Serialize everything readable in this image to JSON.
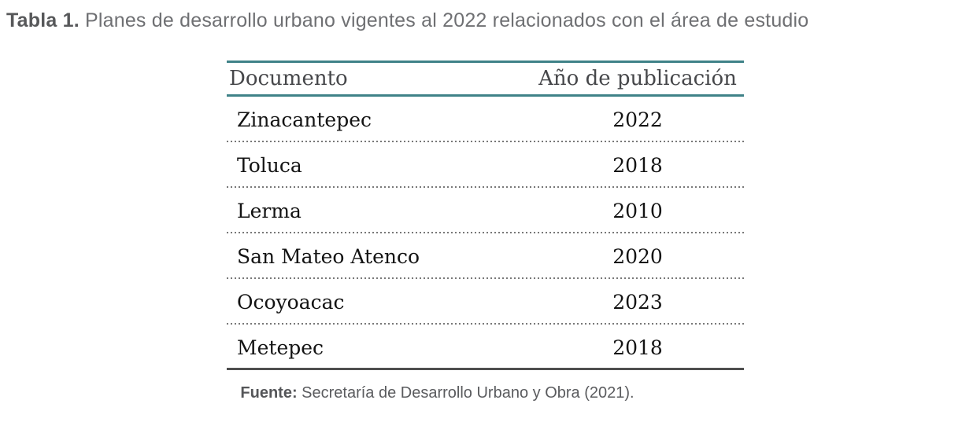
{
  "title": {
    "label": "Tabla 1.",
    "text": " Planes de desarrollo urbano vigentes al 2022 relacionados con el área de estudio"
  },
  "table": {
    "accent_color": "#3f8288",
    "headers": {
      "documento": "Documento",
      "anio": "Año de publicación"
    },
    "rows": [
      {
        "documento": "Zinacantepec",
        "anio": "2022"
      },
      {
        "documento": "Toluca",
        "anio": "2018"
      },
      {
        "documento": "Lerma",
        "anio": "2010"
      },
      {
        "documento": "San Mateo Atenco",
        "anio": "2020"
      },
      {
        "documento": "Ocoyoacac",
        "anio": "2023"
      },
      {
        "documento": "Metepec",
        "anio": "2018"
      }
    ]
  },
  "footer": {
    "label": "Fuente:",
    "text": " Secretaría de Desarrollo Urbano y Obra (2021)."
  }
}
